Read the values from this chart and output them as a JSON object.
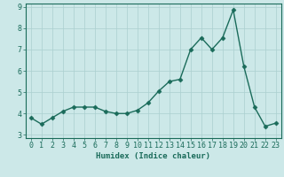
{
  "x": [
    0,
    1,
    2,
    3,
    4,
    5,
    6,
    7,
    8,
    9,
    10,
    11,
    12,
    13,
    14,
    15,
    16,
    17,
    18,
    19,
    20,
    21,
    22,
    23
  ],
  "y": [
    3.8,
    3.5,
    3.8,
    4.1,
    4.3,
    4.3,
    4.3,
    4.1,
    4.0,
    4.0,
    4.15,
    4.5,
    5.05,
    5.5,
    5.6,
    7.0,
    7.55,
    7.0,
    7.55,
    8.85,
    6.2,
    4.3,
    3.4,
    3.55
  ],
  "line_color": "#1a6b5a",
  "marker": "D",
  "marker_size": 2.5,
  "bg_color": "#cce8e8",
  "grid_color": "#aacfcf",
  "xlabel": "Humidex (Indice chaleur)",
  "xlim": [
    -0.5,
    23.5
  ],
  "ylim": [
    2.85,
    9.15
  ],
  "yticks": [
    3,
    4,
    5,
    6,
    7,
    8,
    9
  ],
  "xticks": [
    0,
    1,
    2,
    3,
    4,
    5,
    6,
    7,
    8,
    9,
    10,
    11,
    12,
    13,
    14,
    15,
    16,
    17,
    18,
    19,
    20,
    21,
    22,
    23
  ],
  "xlabel_fontsize": 6.5,
  "tick_fontsize": 6.0,
  "line_width": 1.0
}
